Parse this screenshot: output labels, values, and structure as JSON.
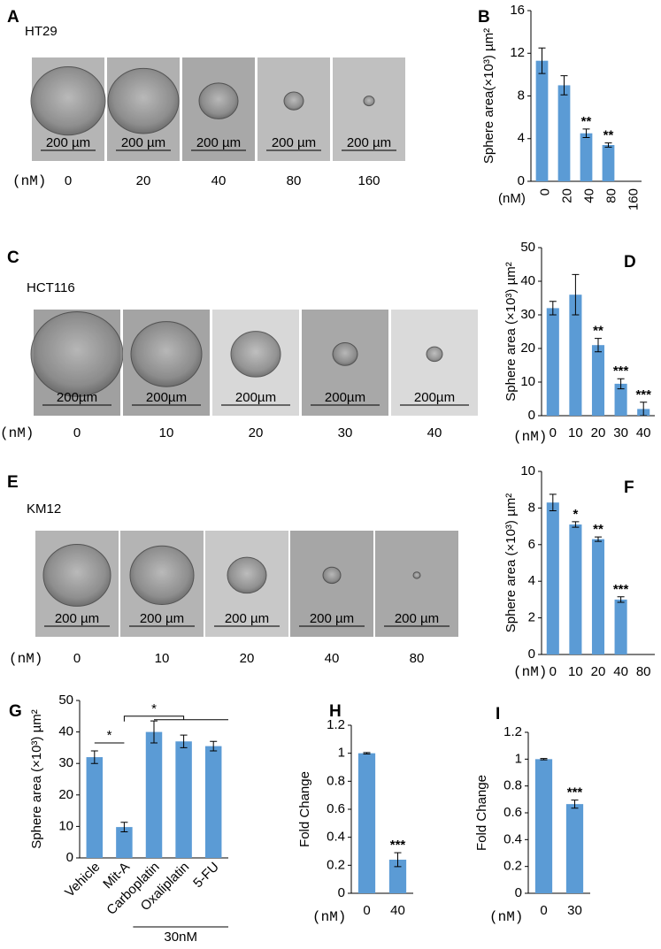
{
  "panels": [
    {
      "label": "A",
      "cell_line": "HT29",
      "scale_bar": "200 µm",
      "unit": "(nM)",
      "doses": [
        "0",
        "20",
        "40",
        "80",
        "160"
      ]
    },
    {
      "label": "C",
      "cell_line": "HCT116",
      "scale_bar": "200µm",
      "unit": "(nM)",
      "doses": [
        "0",
        "10",
        "20",
        "30",
        "40"
      ]
    },
    {
      "label": "E",
      "cell_line": "KM12",
      "scale_bar": "200 µm",
      "unit": "(nM)",
      "doses": [
        "0",
        "10",
        "20",
        "40",
        "80"
      ]
    }
  ],
  "chart_data": [
    {
      "type": "bar",
      "panel": "B",
      "y_label": "Sphere area(×10³) µm²",
      "x_unit": "(nM)",
      "color": "#5b9bd5",
      "categories": [
        "0",
        "20",
        "40",
        "80",
        "160"
      ],
      "values": [
        11.3,
        9,
        4.5,
        3.4,
        null
      ],
      "errors": [
        1.2,
        0.9,
        0.4,
        0.2,
        null
      ],
      "value_annotations": [
        null,
        null,
        "**",
        "**",
        null
      ],
      "ylim": [
        0,
        16
      ],
      "yticks": [
        0,
        4,
        8,
        12,
        16
      ]
    },
    {
      "type": "bar",
      "panel": "D",
      "y_label": "Sphere area (×10³) µm²",
      "x_unit": "(nM)",
      "color": "#5b9bd5",
      "categories": [
        "0",
        "10",
        "20",
        "30",
        "40"
      ],
      "values": [
        32,
        36,
        21,
        9.5,
        2
      ],
      "errors": [
        2,
        6,
        2,
        1.5,
        2
      ],
      "value_annotations": [
        null,
        null,
        "**",
        "***",
        "***"
      ],
      "ylim": [
        0,
        50
      ],
      "yticks": [
        0,
        10,
        20,
        30,
        40,
        50
      ]
    },
    {
      "type": "bar",
      "panel": "F",
      "y_label": "Sphere area (×10³) µm²",
      "x_unit": "(nM)",
      "color": "#5b9bd5",
      "categories": [
        "0",
        "10",
        "20",
        "40",
        "80"
      ],
      "values": [
        8.3,
        7.1,
        6.3,
        3,
        null
      ],
      "errors": [
        0.45,
        0.15,
        0.12,
        0.15,
        null
      ],
      "value_annotations": [
        null,
        "*",
        "**",
        "***",
        null
      ],
      "ylim": [
        0,
        10
      ],
      "yticks": [
        0,
        2,
        4,
        6,
        8,
        10
      ]
    },
    {
      "type": "bar",
      "panel": "G",
      "y_label": "Sphere area (×10³) µm²",
      "color": "#5b9bd5",
      "categories": [
        "Vehicle",
        "Mit-A",
        "Carboplatin",
        "Oxaliplatin",
        "5-FU"
      ],
      "values": [
        32,
        9.8,
        40,
        37,
        35.5
      ],
      "errors": [
        2,
        1.5,
        3.5,
        2,
        1.5
      ],
      "annotations": [
        "*",
        "*"
      ],
      "group_label": "30nM",
      "ylim": [
        0,
        50
      ],
      "yticks": [
        0,
        10,
        20,
        30,
        40,
        50
      ]
    },
    {
      "type": "bar",
      "panel": "H",
      "y_label": "Fold Change",
      "x_unit": "(nM)",
      "color": "#5b9bd5",
      "categories": [
        "0",
        "40"
      ],
      "values": [
        1,
        0.24
      ],
      "errors": [
        0.005,
        0.05
      ],
      "value_annotations": [
        null,
        "***"
      ],
      "ylim": [
        0,
        1.2
      ],
      "yticks": [
        0,
        0.2,
        0.4,
        0.6,
        0.8,
        1,
        1.2
      ]
    },
    {
      "type": "bar",
      "panel": "I",
      "y_label": "Fold Change",
      "x_unit": "(nM)",
      "color": "#5b9bd5",
      "categories": [
        "0",
        "30"
      ],
      "values": [
        1,
        0.665
      ],
      "errors": [
        0.005,
        0.03
      ],
      "value_annotations": [
        null,
        "***"
      ],
      "ylim": [
        0,
        1.2
      ],
      "yticks": [
        0,
        0.2,
        0.4,
        0.6,
        0.8,
        1,
        1.2
      ]
    }
  ]
}
